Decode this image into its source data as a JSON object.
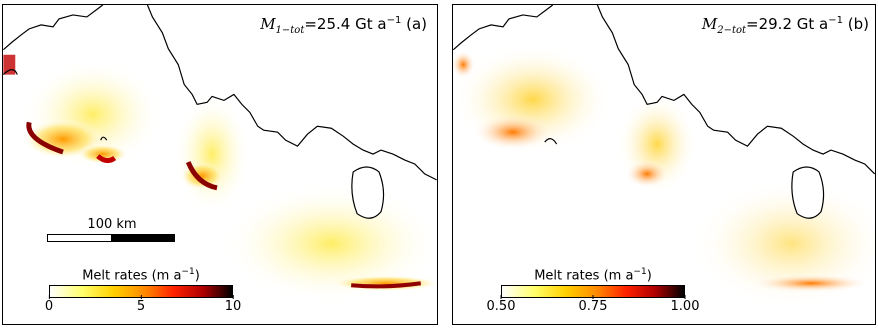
{
  "panels": [
    {
      "id": "a",
      "prefix": "M",
      "subscript": "1−tot",
      "value": "=25.4 Gt a",
      "exponent": "−1",
      "tag": "(a)",
      "colorbar": {
        "label": "Melt rates (m a",
        "label_exp": "−1",
        "label_close": ")",
        "ticks": [
          "0",
          "5",
          "10"
        ],
        "range": [
          0,
          10
        ]
      }
    },
    {
      "id": "b",
      "prefix": "M",
      "subscript": "2−tot",
      "value": "=29.2 Gt a",
      "exponent": "−1",
      "tag": "(b)",
      "colorbar": {
        "label": "Melt rates (m a",
        "label_exp": "−1",
        "label_close": ")",
        "ticks": [
          "0.50",
          "0.75",
          "1.00"
        ],
        "range": [
          0.5,
          1.0
        ]
      }
    }
  ],
  "scalebar": {
    "label": "100 km"
  },
  "colors": {
    "coast": "#000000",
    "low": "#ffffcc",
    "mid": "#ffb000",
    "high": "#cc0000",
    "max": "#300000"
  }
}
